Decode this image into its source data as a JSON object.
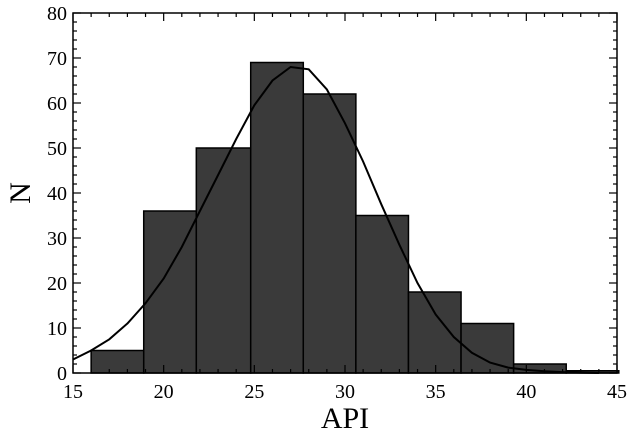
{
  "chart_data": {
    "type": "bar",
    "subtype": "histogram-with-density-curve",
    "xlabel": "API",
    "ylabel": "N",
    "xlim": [
      15,
      45
    ],
    "ylim": [
      0,
      80
    ],
    "x_ticks": [
      15,
      20,
      25,
      30,
      35,
      40,
      45
    ],
    "y_ticks": [
      0,
      10,
      20,
      30,
      40,
      50,
      60,
      70,
      80
    ],
    "grid": false,
    "bar_color": "#3a3a3a",
    "bins": [
      {
        "x0": 16.0,
        "x1": 18.9,
        "value": 5
      },
      {
        "x0": 18.9,
        "x1": 21.8,
        "value": 36
      },
      {
        "x0": 21.8,
        "x1": 24.8,
        "value": 50
      },
      {
        "x0": 24.8,
        "x1": 27.7,
        "value": 69
      },
      {
        "x0": 27.7,
        "x1": 30.6,
        "value": 62
      },
      {
        "x0": 30.6,
        "x1": 33.5,
        "value": 35
      },
      {
        "x0": 33.5,
        "x1": 36.4,
        "value": 18
      },
      {
        "x0": 36.4,
        "x1": 39.3,
        "value": 11
      },
      {
        "x0": 39.3,
        "x1": 42.2,
        "value": 2
      },
      {
        "x0": 42.2,
        "x1": 45.1,
        "value": 0.5
      }
    ],
    "density_curve": {
      "x": [
        15,
        16,
        17,
        18,
        19,
        20,
        21,
        22,
        23,
        24,
        25,
        26,
        27,
        28,
        29,
        30,
        31,
        32,
        33,
        34,
        35,
        36,
        37,
        38,
        39,
        40,
        41,
        42,
        43,
        44
      ],
      "y": [
        3,
        5,
        7.5,
        11,
        15.5,
        21,
        28,
        36,
        44,
        52,
        59.5,
        65,
        68,
        67.5,
        63,
        55.5,
        47,
        37.5,
        28.5,
        20,
        13,
        8,
        4.5,
        2.3,
        1.2,
        0.7,
        0.4,
        0.2,
        0.1,
        0
      ]
    }
  }
}
